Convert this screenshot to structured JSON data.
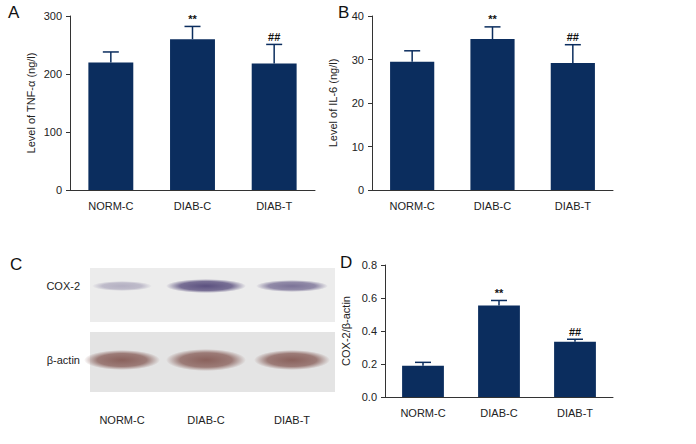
{
  "chart_data": [
    {
      "type": "bar",
      "panel_label": "A",
      "categories": [
        "NORM-C",
        "DIAB-C",
        "DIAB-T"
      ],
      "values": [
        220,
        260,
        218
      ],
      "errors": [
        18,
        22,
        33
      ],
      "annotations": [
        null,
        "**",
        "##"
      ],
      "y_label": "Level of TNF-α (ng/l)",
      "color": "#0b2d5e",
      "ylim": [
        0,
        300
      ],
      "yticks": [
        0,
        100,
        200,
        300
      ],
      "grid": false
    },
    {
      "type": "bar",
      "panel_label": "B",
      "categories": [
        "NORM-C",
        "DIAB-C",
        "DIAB-T"
      ],
      "values": [
        29.5,
        34.7,
        29.2
      ],
      "errors": [
        2.5,
        2.8,
        4.2
      ],
      "annotations": [
        null,
        "**",
        "##"
      ],
      "y_label": "Level of IL-6 (ng/l)",
      "color": "#0b2d5e",
      "ylim": [
        0,
        40
      ],
      "yticks": [
        0,
        10,
        20,
        30,
        40
      ],
      "grid": false
    },
    {
      "type": "bar",
      "panel_label": "D",
      "categories": [
        "NORM-C",
        "DIAB-C",
        "DIAB-T"
      ],
      "values": [
        0.19,
        0.555,
        0.335
      ],
      "errors": [
        0.02,
        0.03,
        0.015
      ],
      "annotations": [
        null,
        "**",
        "##"
      ],
      "y_label": "COX-2/β-actin",
      "color": "#0b2d5e",
      "ylim": [
        0,
        0.8
      ],
      "yticks": [
        {
          "value": 0,
          "label": "0.0"
        },
        0.2,
        0.4,
        0.6,
        0.8
      ],
      "grid": false
    }
  ],
  "blot": {
    "panel_label": "C",
    "rows": [
      "COX-2",
      "β-actin"
    ],
    "lanes": [
      "NORM-C",
      "DIAB-C",
      "DIAB-T"
    ]
  }
}
